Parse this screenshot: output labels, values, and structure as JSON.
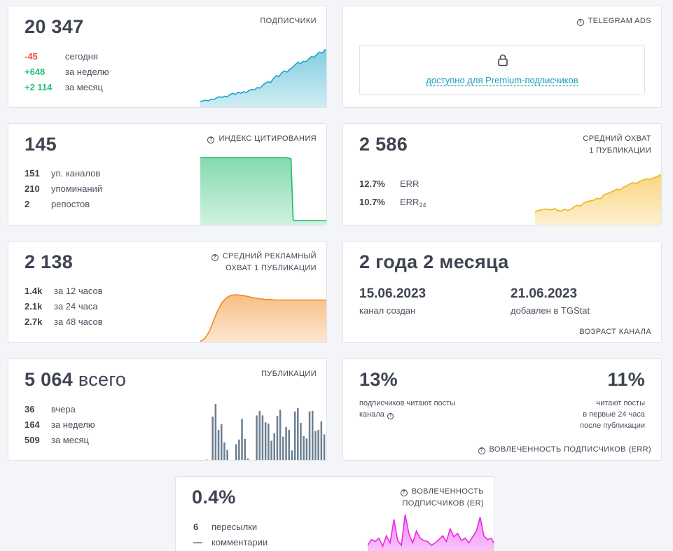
{
  "subscribers": {
    "value": "20 347",
    "label": "ПОДПИСЧИКИ",
    "rows": [
      {
        "value": "-45",
        "text": "сегодня",
        "tone": "red"
      },
      {
        "value": "+648",
        "text": "за неделю",
        "tone": "green"
      },
      {
        "value": "+2 114",
        "text": "за месяц",
        "tone": "green"
      }
    ],
    "spark": [
      10,
      11,
      12,
      11,
      14,
      13,
      16,
      18,
      17,
      19,
      18,
      22,
      24,
      22,
      26,
      24,
      27,
      25,
      29,
      31,
      30,
      34,
      33,
      38,
      42,
      44,
      43,
      50,
      55,
      53,
      60,
      63,
      61,
      66,
      69,
      74,
      78,
      76,
      80,
      79,
      84,
      88,
      87,
      92,
      96,
      94,
      100,
      99
    ]
  },
  "telegram_ads": {
    "label": "TELEGRAM ADS",
    "premium_text": "доступно для Premium-подписчиков",
    "icon": "lock-icon"
  },
  "citation": {
    "value": "145",
    "label": "ИНДЕКС ЦИТИРОВАНИЯ",
    "rows": [
      {
        "value": "151",
        "text": "уп. каналов"
      },
      {
        "value": "210",
        "text": "упоминаний"
      },
      {
        "value": "2",
        "text": "репостов"
      }
    ],
    "spark": [
      100,
      100,
      100,
      100,
      100,
      100,
      100,
      100,
      100,
      100,
      100,
      100,
      100,
      100,
      100,
      100,
      100,
      100,
      100,
      100,
      100,
      100,
      100,
      100,
      100,
      100,
      100,
      100,
      100,
      100,
      100,
      100,
      100,
      100,
      100,
      100,
      100,
      100,
      100,
      100,
      100,
      99,
      98,
      3,
      2,
      2,
      2,
      2,
      2,
      2,
      2,
      2,
      2,
      2,
      2,
      2,
      2,
      2,
      2,
      2
    ]
  },
  "avg_reach": {
    "value": "2 586",
    "label_line1": "СРЕДНИЙ ОХВАТ",
    "label_line2": "1 ПУБЛИКАЦИИ",
    "rows": [
      {
        "value": "12.7%",
        "text": "ERR",
        "sub": ""
      },
      {
        "value": "10.7%",
        "text": "ERR",
        "sub": "24"
      }
    ],
    "spark": [
      20,
      22,
      23,
      24,
      24,
      23,
      25,
      22,
      21,
      24,
      22,
      24,
      28,
      30,
      29,
      34,
      36,
      37,
      38,
      41,
      40,
      46,
      48,
      50,
      52,
      55,
      54,
      58,
      60,
      63,
      65,
      64,
      67,
      69,
      71,
      70,
      72,
      74,
      76,
      78
    ]
  },
  "ad_reach": {
    "value": "2 138",
    "label_line1": "СРЕДНИЙ РЕКЛАМНЫЙ",
    "label_line2": "ОХВАТ 1 ПУБЛИКАЦИИ",
    "rows": [
      {
        "value": "1.4k",
        "text": "за 12 часов"
      },
      {
        "value": "2.1k",
        "text": "за 24 часа"
      },
      {
        "value": "2.7k",
        "text": "за 48 часов"
      }
    ],
    "spark": [
      2,
      8,
      22,
      45,
      68,
      84,
      94,
      99,
      100,
      99,
      98,
      96,
      94,
      92,
      91,
      90,
      90,
      89,
      89,
      89,
      89,
      89,
      89,
      89,
      89,
      89,
      89,
      89,
      89,
      89
    ]
  },
  "age": {
    "value": "2 года 2 месяца",
    "created_date": "15.06.2023",
    "created_text": "канал создан",
    "added_date": "21.06.2023",
    "added_text": "добавлен в TGStat",
    "label": "ВОЗРАСТ КАНАЛА"
  },
  "publications": {
    "value": "5 064",
    "suffix": "всего",
    "label": "ПУБЛИКАЦИИ",
    "rows": [
      {
        "value": "36",
        "text": "вчера"
      },
      {
        "value": "164",
        "text": "за неделю"
      },
      {
        "value": "509",
        "text": "за месяц"
      }
    ],
    "bars": [
      3,
      0,
      78,
      100,
      55,
      65,
      33,
      20,
      0,
      0,
      30,
      38,
      74,
      39,
      5,
      2,
      0,
      80,
      88,
      80,
      68,
      66,
      36,
      49,
      79,
      90,
      43,
      60,
      55,
      19,
      87,
      93,
      67,
      44,
      40,
      87,
      88,
      53,
      55,
      70,
      47
    ]
  },
  "engagement_err": {
    "left_value": "13%",
    "left_line1": "подписчиков читают посты",
    "left_line2": "канала",
    "right_value": "11%",
    "right_line1": "читают посты",
    "right_line2": "в первые 24 часа",
    "right_line3": "после публикации",
    "label": "ВОВЛЕЧЕННОСТЬ ПОДПИСЧИКОВ (ERR)"
  },
  "engagement_er": {
    "value": "0.4%",
    "label_line1": "ВОВЛЕЧЕННОСТЬ",
    "label_line2": "ПОДПИСЧИКОВ (ER)",
    "rows": [
      {
        "value": "6",
        "text": "пересылки"
      },
      {
        "value": "—",
        "text": "комментарии"
      }
    ],
    "spark": [
      30,
      42,
      38,
      45,
      28,
      50,
      35,
      85,
      40,
      30,
      95,
      55,
      35,
      60,
      45,
      40,
      38,
      30,
      35,
      42,
      50,
      38,
      65,
      48,
      55,
      40,
      45,
      35,
      48,
      60,
      90,
      50,
      42,
      45,
      30
    ]
  },
  "colors": {
    "subscribers": "#1da5c6",
    "citation": "#1ebd6a",
    "reach": "#f3b41a",
    "ad_reach": "#f2891f",
    "bars": "#6b7f92",
    "er": "#e82ae8"
  }
}
